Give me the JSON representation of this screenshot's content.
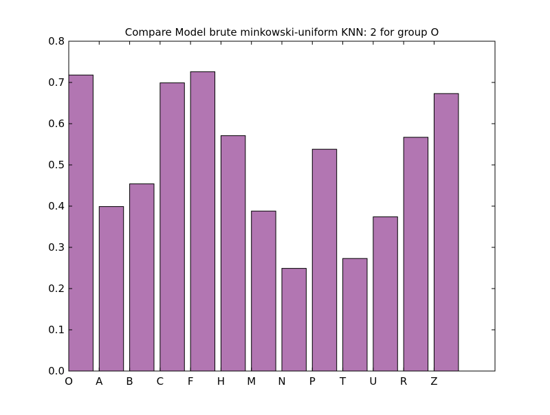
{
  "chart_data": {
    "type": "bar",
    "title": "Compare Model brute minkowski-uniform KNN: 2 for group O",
    "xlabel": "",
    "ylabel": "",
    "categories": [
      "O",
      "A",
      "B",
      "C",
      "F",
      "H",
      "M",
      "N",
      "P",
      "T",
      "U",
      "R",
      "Z"
    ],
    "values": [
      0.718,
      0.399,
      0.454,
      0.699,
      0.726,
      0.571,
      0.388,
      0.249,
      0.538,
      0.273,
      0.374,
      0.567,
      0.673
    ],
    "ylim": [
      0,
      0.8
    ],
    "xlim": [
      0,
      14
    ],
    "yticks": [
      "0.0",
      "0.1",
      "0.2",
      "0.3",
      "0.4",
      "0.5",
      "0.6",
      "0.7",
      "0.8"
    ],
    "bar_color": "#b276b2",
    "edge_color": "#000000",
    "grid": false,
    "legend": "none"
  }
}
